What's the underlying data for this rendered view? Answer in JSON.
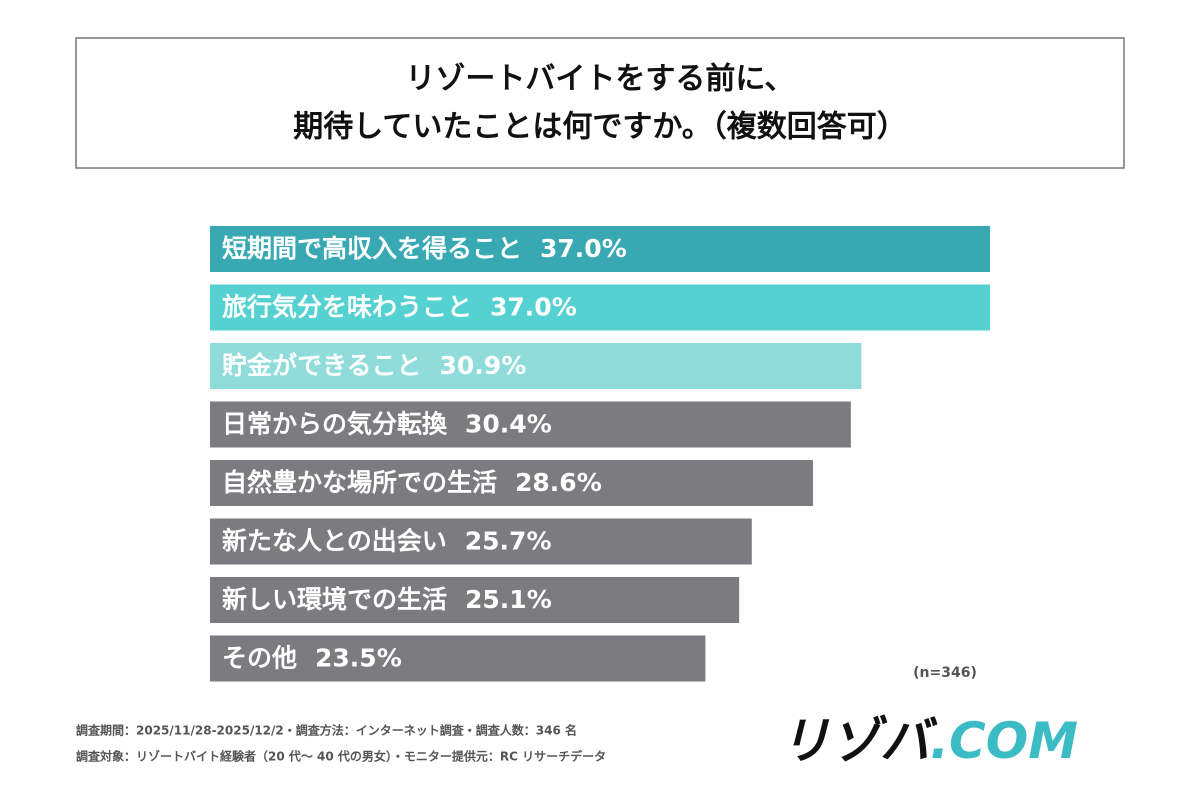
{
  "chart_data": {
    "type": "bar",
    "orientation": "horizontal",
    "title": [
      "リゾートバイトをする前に、",
      "期待していたことは何ですか。（複数回答可）"
    ],
    "categories": [
      "短期間で高収入を得ること",
      "旅行気分を味わうこと",
      "貯金ができること",
      "日常からの気分転換",
      "自然豊かな場所での生活",
      "新たな人との出会い",
      "新しい環境での生活",
      "その他"
    ],
    "values": [
      37.0,
      37.0,
      30.9,
      30.4,
      28.6,
      25.7,
      25.1,
      23.5
    ],
    "value_labels": [
      "37.0%",
      "37.0%",
      "30.9%",
      "30.4%",
      "28.6%",
      "25.7%",
      "25.1%",
      "23.5%"
    ],
    "colors": [
      "#38a9b3",
      "#56d1d1",
      "#90dcdb",
      "#7b7b80",
      "#7b7b80",
      "#7b7b80",
      "#7b7b80",
      "#7b7b80"
    ],
    "sample_note": "(n=346)",
    "footnotes": [
      "調査期間：2025/11/28-2025/12/2・調査方法：インターネット調査・調査人数：346 名",
      "調査対象：リゾートバイト経験者（20 代〜 40 代の男女）・モニター提供元：RC リサーチデータ"
    ],
    "logo": {
      "main": "リゾバ",
      "suffix": ".COM"
    }
  }
}
